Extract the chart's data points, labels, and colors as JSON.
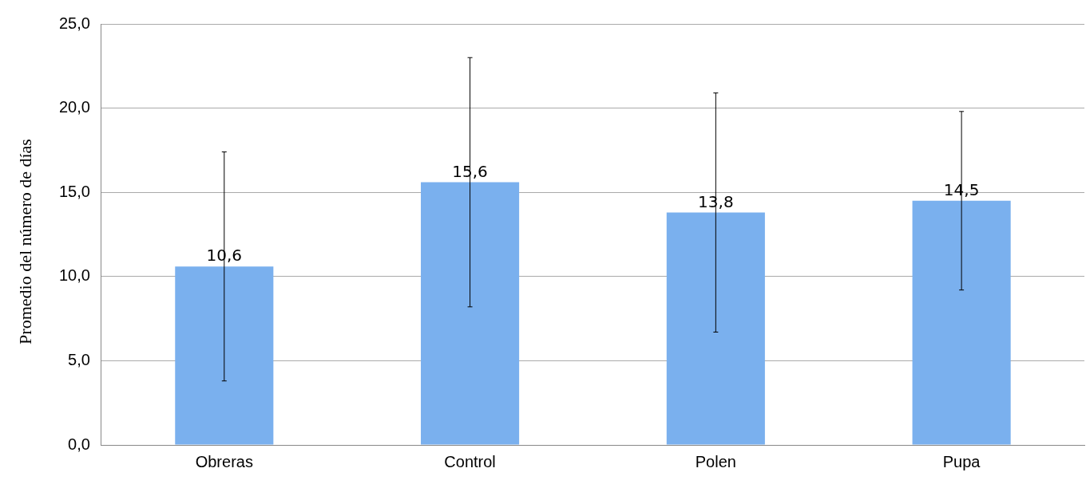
{
  "chart_data": {
    "type": "bar",
    "ylabel": "Promedio del número de días",
    "categories": [
      "Obreras",
      "Control",
      "Polen",
      "Pupa"
    ],
    "values": [
      10.6,
      15.6,
      13.8,
      14.5
    ],
    "errors": [
      6.8,
      7.4,
      7.1,
      5.3
    ],
    "value_labels": [
      "10,6",
      "15,6",
      "13,8",
      "14,5"
    ],
    "color": "#7ab0ee",
    "ylim": [
      0,
      25
    ],
    "yticks": [
      {
        "value": 0,
        "label": "0,0"
      },
      {
        "value": 5,
        "label": "5,0"
      },
      {
        "value": 10,
        "label": "10,0"
      },
      {
        "value": 15,
        "label": "15,0"
      },
      {
        "value": 20,
        "label": "20,0"
      },
      {
        "value": 25,
        "label": "25,0"
      }
    ],
    "grid": "y",
    "legend": false
  }
}
